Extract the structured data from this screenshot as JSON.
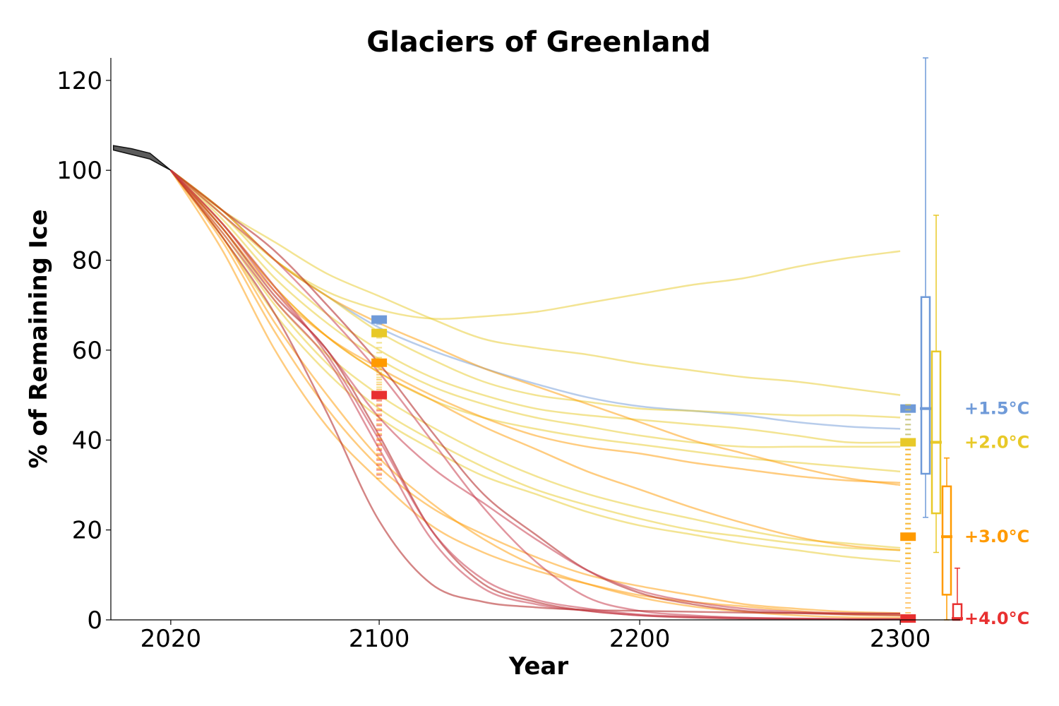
{
  "chart_data": {
    "type": "line",
    "title": "Glaciers of Greenland",
    "xlabel": "Year",
    "ylabel": "% of Remaining Ice",
    "xlim": [
      1997,
      2323
    ],
    "ylim": [
      0,
      125
    ],
    "xticks": [
      2020,
      2100,
      2200,
      2300
    ],
    "yticks": [
      0,
      20,
      40,
      60,
      80,
      100,
      120
    ],
    "grid": false,
    "historical": {
      "x": [
        1998,
        2005,
        2012,
        2020
      ],
      "lower": [
        104.5,
        103.5,
        102.5,
        100
      ],
      "upper": [
        105.5,
        104.8,
        103.8,
        100
      ]
    },
    "scenarios": [
      {
        "name": "+1.5°C",
        "color": "#6f9ad8",
        "mean_2100": 66.8,
        "median_2300": 47,
        "box_2300": {
          "q1": 32.5,
          "q3": 71.8,
          "whisker_low": 22.8,
          "whisker_high": 125
        },
        "spread_2100": [
          64,
          67
        ],
        "spread_2300": [
          40,
          48
        ],
        "runs": [
          {
            "x": [
              2020,
              2040,
              2060,
              2080,
              2100,
              2120,
              2140,
              2160,
              2180,
              2200,
              2220,
              2240,
              2260,
              2280,
              2300
            ],
            "y": [
              100,
              91,
              80,
              72,
              65,
              60,
              56,
              52.5,
              49.5,
              47.5,
              46.5,
              45.5,
              44,
              43,
              42.5
            ]
          }
        ]
      },
      {
        "name": "+2.0°C",
        "color": "#e8c928",
        "mean_2100": 63.8,
        "median_2300": 39.5,
        "box_2300": {
          "q1": 23.7,
          "q3": 59.7,
          "whisker_low": 15,
          "whisker_high": 90
        },
        "spread_2100": [
          49,
          64
        ],
        "spread_2300": [
          12,
          48
        ],
        "runs": [
          {
            "x": [
              2020,
              2040,
              2060,
              2080,
              2100,
              2120,
              2140,
              2160,
              2180,
              2200,
              2220,
              2240,
              2260,
              2280,
              2300
            ],
            "y": [
              100,
              90,
              80,
              73,
              69,
              67,
              67.5,
              68.5,
              70.5,
              72.5,
              74.5,
              76,
              78.5,
              80.5,
              82
            ]
          },
          {
            "x": [
              2020,
              2040,
              2060,
              2080,
              2100,
              2120,
              2140,
              2160,
              2180,
              2200,
              2220,
              2240,
              2260,
              2280,
              2300
            ],
            "y": [
              100,
              91,
              84,
              77,
              72,
              67,
              62.5,
              60.5,
              59,
              57,
              55.5,
              54,
              53,
              51.5,
              50
            ]
          },
          {
            "x": [
              2020,
              2040,
              2060,
              2080,
              2100,
              2120,
              2140,
              2160,
              2180,
              2200,
              2220,
              2240,
              2260,
              2280,
              2300
            ],
            "y": [
              100,
              91,
              80,
              72,
              64,
              58,
              53,
              50,
              48.5,
              47,
              46.5,
              46,
              45.5,
              45.5,
              45
            ]
          },
          {
            "x": [
              2020,
              2040,
              2060,
              2080,
              2100,
              2120,
              2140,
              2160,
              2180,
              2200,
              2220,
              2240,
              2260,
              2280,
              2300
            ],
            "y": [
              100,
              90,
              78,
              68,
              60,
              54,
              50,
              47,
              45.5,
              44.5,
              43.5,
              42.5,
              41,
              39.5,
              39.5
            ]
          },
          {
            "x": [
              2020,
              2040,
              2060,
              2080,
              2100,
              2120,
              2140,
              2160,
              2180,
              2200,
              2220,
              2240,
              2260,
              2280,
              2300
            ],
            "y": [
              100,
              89,
              76,
              66,
              58,
              52,
              48,
              45,
              43,
              41,
              39.5,
              38.5,
              38.5,
              38.5,
              38.5
            ]
          },
          {
            "x": [
              2020,
              2040,
              2060,
              2080,
              2100,
              2120,
              2140,
              2160,
              2180,
              2200,
              2220,
              2240,
              2260,
              2280,
              2300
            ],
            "y": [
              100,
              88,
              74,
              63,
              55,
              49,
              45,
              42.5,
              40.5,
              39,
              37.5,
              36,
              35,
              34,
              33
            ]
          },
          {
            "x": [
              2020,
              2040,
              2060,
              2080,
              2100,
              2120,
              2140,
              2160,
              2180,
              2200,
              2220,
              2240,
              2260,
              2280,
              2300
            ],
            "y": [
              100,
              87,
              71,
              59,
              50,
              43,
              37,
              32,
              28,
              25,
              22.5,
              20,
              18,
              17,
              16
            ]
          },
          {
            "x": [
              2020,
              2040,
              2060,
              2080,
              2100,
              2120,
              2140,
              2160,
              2180,
              2200,
              2220,
              2240,
              2260,
              2280,
              2300
            ],
            "y": [
              100,
              86,
              70,
              57,
              47,
              40,
              34,
              29,
              25.5,
              22.5,
              20,
              18.5,
              17,
              16,
              15.5
            ]
          },
          {
            "x": [
              2020,
              2040,
              2060,
              2080,
              2100,
              2120,
              2140,
              2160,
              2180,
              2200,
              2220,
              2240,
              2260,
              2280,
              2300
            ],
            "y": [
              100,
              85,
              68,
              55,
              45,
              38,
              32,
              28,
              24,
              21,
              19,
              17,
              15.5,
              14,
              13
            ]
          }
        ]
      },
      {
        "name": "+3.0°C",
        "color": "#ff9a00",
        "mean_2100": 57.2,
        "median_2300": 18.5,
        "box_2300": {
          "q1": 5.6,
          "q3": 29.7,
          "whisker_low": 0,
          "whisker_high": 36
        },
        "spread_2100": [
          31,
          58
        ],
        "spread_2300": [
          0,
          38
        ],
        "runs": [
          {
            "x": [
              2020,
              2040,
              2060,
              2080,
              2100,
              2120,
              2140,
              2160,
              2180,
              2200,
              2220,
              2240,
              2260,
              2280,
              2300
            ],
            "y": [
              100,
              91,
              80,
              72,
              66,
              61,
              56,
              52,
              48,
              44,
              40,
              37,
              34,
              31.5,
              30
            ]
          },
          {
            "x": [
              2020,
              2040,
              2060,
              2080,
              2100,
              2120,
              2140,
              2160,
              2180,
              2200,
              2220,
              2240,
              2260,
              2280,
              2300
            ],
            "y": [
              100,
              87,
              73,
              63,
              56,
              50,
              45,
              41,
              38.5,
              37,
              35,
              33.5,
              32,
              31,
              30.5
            ]
          },
          {
            "x": [
              2020,
              2040,
              2060,
              2080,
              2100,
              2120,
              2140,
              2160,
              2180,
              2200,
              2220,
              2240,
              2260,
              2280,
              2300
            ],
            "y": [
              100,
              88,
              74,
              63,
              55,
              49,
              43,
              38,
              33,
              29,
              25,
              21.5,
              18.5,
              16.5,
              15.5
            ]
          },
          {
            "x": [
              2020,
              2040,
              2060,
              2080,
              2100,
              2120,
              2140,
              2160,
              2180,
              2200,
              2220,
              2240,
              2260,
              2280,
              2300
            ],
            "y": [
              100,
              84,
              64,
              47,
              34,
              25,
              19,
              14,
              10,
              7.5,
              5.5,
              3.5,
              2.5,
              1.8,
              1.5
            ]
          },
          {
            "x": [
              2020,
              2040,
              2060,
              2080,
              2100,
              2120,
              2140,
              2160,
              2180,
              2200,
              2220,
              2240,
              2260,
              2280,
              2300
            ],
            "y": [
              100,
              82,
              60,
              43,
              31,
              21,
              15,
              11,
              8,
              5.5,
              4,
              3,
              2,
              1.2,
              1
            ]
          },
          {
            "x": [
              2020,
              2040,
              2060,
              2080,
              2100,
              2120,
              2140,
              2160,
              2180,
              2200,
              2220,
              2240,
              2260,
              2280,
              2300
            ],
            "y": [
              100,
              85,
              66,
              50,
              36,
              26,
              18,
              12,
              8,
              5,
              3,
              1.8,
              1,
              0.6,
              0.5
            ]
          }
        ]
      },
      {
        "name": "+4.0°C",
        "color": "#e83030",
        "mean_2100": 50,
        "median_2300": 0.3,
        "box_2300": {
          "q1": 0,
          "q3": 3.5,
          "whisker_low": 0,
          "whisker_high": 11.5
        },
        "spread_2100": [
          31.5,
          50
        ],
        "spread_2300": [
          0,
          1
        ],
        "runs": [
          {
            "x": [
              2020,
              2040,
              2060,
              2080,
              2100,
              2120,
              2140,
              2160,
              2180,
              2200,
              2220,
              2240,
              2260,
              2280,
              2300
            ],
            "y": [
              100,
              90,
              80,
              68,
              55,
              40,
              25,
              13,
              5,
              2,
              1,
              0.5,
              0.3,
              0.2,
              0.2
            ]
          },
          {
            "x": [
              2020,
              2040,
              2060,
              2080,
              2100,
              2120,
              2140,
              2160,
              2180,
              2200,
              2220,
              2240,
              2260,
              2280,
              2300
            ],
            "y": [
              100,
              91,
              82,
              70,
              57,
              42,
              28,
              19,
              11,
              6,
              3.5,
              2,
              1.5,
              1.2,
              1
            ]
          },
          {
            "x": [
              2020,
              2040,
              2060,
              2080,
              2100,
              2120,
              2140,
              2160,
              2180,
              2200,
              2220,
              2240,
              2260,
              2280,
              2300
            ],
            "y": [
              100,
              88,
              73,
              60,
              45,
              34,
              26,
              18,
              11,
              6.5,
              4,
              2.5,
              1.8,
              1.5,
              1.4
            ]
          },
          {
            "x": [
              2020,
              2040,
              2060,
              2080,
              2100,
              2120,
              2140,
              2160,
              2180,
              2200,
              2220,
              2240,
              2260,
              2280,
              2300
            ],
            "y": [
              100,
              87,
              72,
              60,
              41,
              20,
              8,
              4,
              2,
              1,
              0.5,
              0.3,
              0.2,
              0.1,
              0.1
            ]
          },
          {
            "x": [
              2020,
              2040,
              2060,
              2080,
              2100,
              2120,
              2140,
              2160,
              2180,
              2200,
              2220,
              2240,
              2260,
              2280,
              2300
            ],
            "y": [
              100,
              86,
              71,
              58,
              38,
              18,
              7,
              3.5,
              2,
              1,
              0.6,
              0.4,
              0.3,
              0.2,
              0.2
            ]
          },
          {
            "x": [
              2020,
              2040,
              2060,
              2080,
              2100,
              2120,
              2140,
              2160,
              2180,
              2200,
              2220,
              2240,
              2260,
              2280,
              2300
            ],
            "y": [
              100,
              85,
              68,
              46,
              22,
              8,
              4,
              2.8,
              2.2,
              2,
              1.8,
              1.6,
              1.5,
              1.4,
              1.4
            ]
          },
          {
            "x": [
              2020,
              2040,
              2060,
              2080,
              2100,
              2120,
              2140,
              2160,
              2180,
              2200,
              2220,
              2240,
              2260,
              2280,
              2300
            ],
            "y": [
              100,
              88,
              74,
              59,
              40,
              20,
              9,
              4.5,
              2.5,
              1.2,
              0.7,
              0.4,
              0.2,
              0.1,
              0.1
            ]
          }
        ]
      }
    ]
  }
}
